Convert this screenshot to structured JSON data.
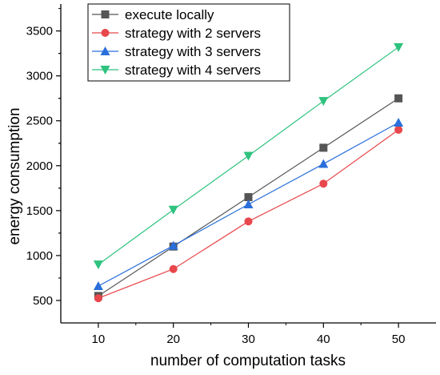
{
  "chart_data": {
    "type": "line",
    "title": "",
    "xlabel": "number of computation tasks",
    "ylabel": "energy consumption",
    "x": [
      10,
      20,
      30,
      40,
      50
    ],
    "xlim": [
      5,
      55
    ],
    "ylim": [
      250,
      3800
    ],
    "xticks": [
      10,
      20,
      30,
      40,
      50
    ],
    "yticks": [
      500,
      1000,
      1500,
      2000,
      2500,
      3000,
      3500
    ],
    "grid": false,
    "legend_position": "top-left",
    "series": [
      {
        "name": "execute locally",
        "color": "#555555",
        "marker": "square",
        "values": [
          550,
          1100,
          1650,
          2200,
          2750
        ]
      },
      {
        "name": "strategy with 2 servers",
        "color": "#e8474b",
        "marker": "circle",
        "values": [
          525,
          850,
          1380,
          1800,
          2400
        ]
      },
      {
        "name": "strategy with 3 servers",
        "color": "#2a6fdb",
        "marker": "triangle-up",
        "values": [
          660,
          1110,
          1570,
          2020,
          2480
        ]
      },
      {
        "name": "strategy with 4 servers",
        "color": "#2ec27e",
        "marker": "triangle-down",
        "values": [
          900,
          1510,
          2110,
          2720,
          3320
        ]
      }
    ]
  }
}
